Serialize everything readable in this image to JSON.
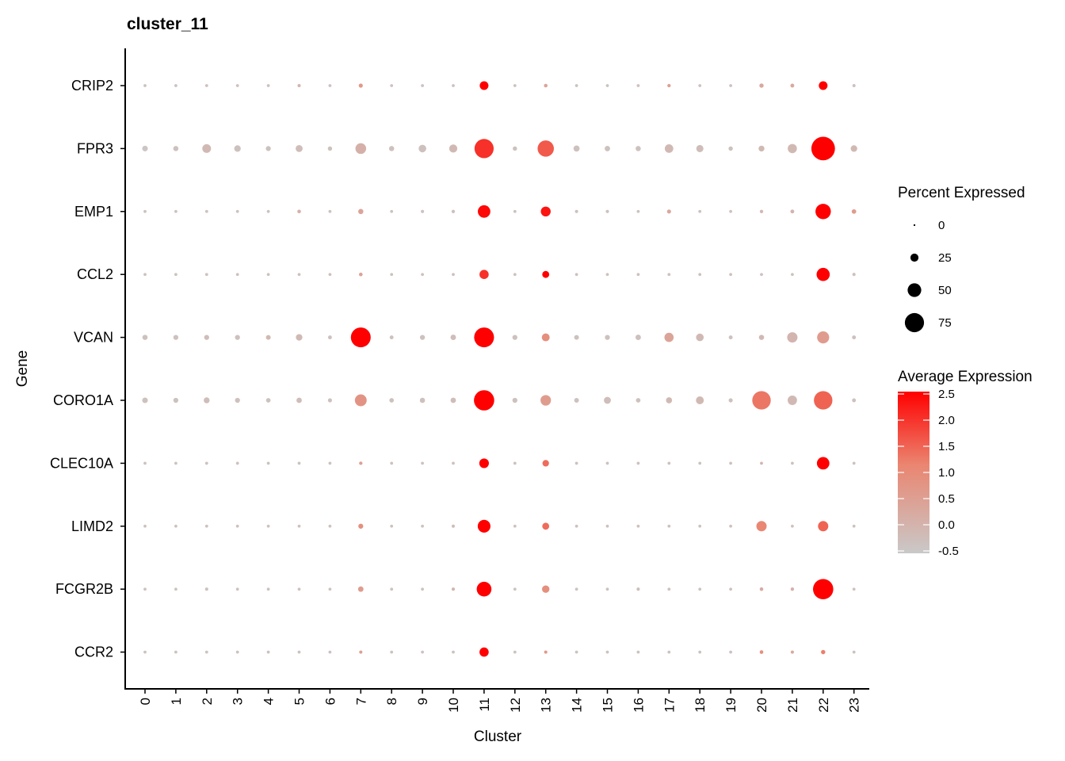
{
  "chart_data": {
    "type": "dot",
    "title": "cluster_11",
    "xlabel": "Cluster",
    "ylabel": "Gene",
    "categories": [
      "0",
      "1",
      "2",
      "3",
      "4",
      "5",
      "6",
      "7",
      "8",
      "9",
      "10",
      "11",
      "12",
      "13",
      "14",
      "15",
      "16",
      "17",
      "18",
      "19",
      "20",
      "21",
      "22",
      "23"
    ],
    "genes": [
      "CRIP2",
      "FPR3",
      "EMP1",
      "CCL2",
      "VCAN",
      "CORO1A",
      "CLEC10A",
      "LIMD2",
      "FCGR2B",
      "CCR2"
    ],
    "percent_expressed": [
      [
        2,
        2,
        2,
        2,
        2,
        3,
        2,
        7,
        2,
        2,
        2,
        28,
        2,
        5,
        2,
        2,
        2,
        4,
        2,
        2,
        8,
        6,
        28,
        3
      ],
      [
        14,
        12,
        28,
        18,
        11,
        20,
        8,
        37,
        12,
        23,
        25,
        75,
        8,
        62,
        16,
        13,
        12,
        27,
        21,
        8,
        15,
        30,
        95,
        18
      ],
      [
        2,
        2,
        2,
        2,
        2,
        5,
        2,
        12,
        2,
        3,
        4,
        45,
        2,
        33,
        3,
        3,
        2,
        7,
        2,
        2,
        4,
        6,
        58,
        9
      ],
      [
        2,
        2,
        2,
        2,
        2,
        2,
        2,
        5,
        2,
        2,
        2,
        30,
        2,
        20,
        2,
        2,
        2,
        2,
        2,
        2,
        2,
        2,
        48,
        3
      ],
      [
        12,
        11,
        11,
        11,
        10,
        18,
        6,
        78,
        6,
        11,
        13,
        78,
        11,
        24,
        10,
        11,
        13,
        30,
        23,
        6,
        12,
        35,
        43,
        6
      ],
      [
        14,
        11,
        15,
        11,
        9,
        13,
        7,
        42,
        9,
        12,
        13,
        80,
        11,
        36,
        10,
        20,
        9,
        16,
        24,
        7,
        72,
        31,
        72,
        6
      ],
      [
        2,
        2,
        2,
        2,
        2,
        2,
        2,
        4,
        2,
        2,
        2,
        32,
        2,
        18,
        2,
        2,
        2,
        2,
        2,
        2,
        2,
        2,
        45,
        2
      ],
      [
        2,
        2,
        2,
        2,
        2,
        2,
        2,
        11,
        2,
        2,
        3,
        46,
        2,
        20,
        2,
        2,
        2,
        2,
        2,
        2,
        35,
        2,
        35,
        2
      ],
      [
        2,
        2,
        3,
        2,
        2,
        2,
        2,
        13,
        2,
        2,
        3,
        55,
        2,
        22,
        2,
        2,
        3,
        2,
        2,
        2,
        5,
        4,
        80,
        2
      ],
      [
        2,
        2,
        2,
        2,
        2,
        2,
        2,
        3,
        2,
        2,
        2,
        30,
        2,
        3,
        2,
        2,
        2,
        2,
        2,
        2,
        5,
        3,
        8,
        2
      ]
    ],
    "average_expression": [
      [
        -0.3,
        -0.3,
        -0.3,
        -0.3,
        -0.3,
        0.0,
        -0.3,
        0.7,
        -0.3,
        -0.3,
        -0.3,
        2.5,
        -0.3,
        0.4,
        -0.3,
        -0.3,
        -0.3,
        0.5,
        -0.3,
        -0.3,
        0.3,
        0.3,
        2.5,
        -0.3
      ],
      [
        -0.4,
        -0.3,
        -0.1,
        -0.3,
        -0.3,
        -0.2,
        -0.3,
        0.1,
        -0.3,
        -0.3,
        -0.1,
        2.0,
        -0.3,
        1.6,
        -0.3,
        -0.3,
        -0.3,
        -0.1,
        -0.2,
        -0.3,
        -0.1,
        -0.1,
        2.5,
        -0.1
      ],
      [
        -0.3,
        -0.3,
        -0.3,
        -0.3,
        -0.3,
        0.1,
        -0.3,
        0.4,
        -0.3,
        -0.3,
        -0.3,
        2.4,
        -0.3,
        2.3,
        -0.3,
        -0.3,
        -0.3,
        0.3,
        -0.3,
        -0.3,
        -0.1,
        0.0,
        2.5,
        0.6
      ],
      [
        -0.3,
        -0.3,
        -0.3,
        -0.3,
        -0.3,
        -0.3,
        -0.3,
        0.4,
        -0.3,
        -0.3,
        -0.3,
        2.0,
        -0.3,
        2.5,
        -0.3,
        -0.3,
        -0.3,
        -0.3,
        -0.3,
        -0.3,
        -0.3,
        -0.3,
        2.5,
        -0.3
      ],
      [
        -0.3,
        -0.3,
        -0.2,
        -0.3,
        -0.1,
        -0.1,
        -0.3,
        2.5,
        -0.3,
        -0.3,
        -0.2,
        2.5,
        -0.3,
        0.9,
        -0.3,
        -0.3,
        -0.3,
        0.4,
        -0.1,
        -0.3,
        -0.1,
        0.0,
        0.6,
        -0.3
      ],
      [
        -0.3,
        -0.3,
        -0.2,
        -0.3,
        -0.3,
        -0.2,
        -0.3,
        0.8,
        -0.3,
        -0.3,
        -0.2,
        2.5,
        -0.3,
        0.6,
        -0.3,
        -0.2,
        -0.3,
        -0.1,
        -0.1,
        -0.3,
        1.3,
        -0.1,
        1.5,
        -0.3
      ],
      [
        -0.3,
        -0.3,
        -0.3,
        -0.3,
        -0.3,
        -0.3,
        -0.3,
        0.5,
        -0.3,
        -0.3,
        -0.3,
        2.5,
        -0.3,
        1.4,
        -0.3,
        -0.3,
        -0.3,
        -0.3,
        -0.3,
        -0.3,
        0.0,
        -0.3,
        2.5,
        -0.3
      ],
      [
        -0.3,
        -0.3,
        -0.3,
        -0.3,
        -0.3,
        -0.3,
        -0.3,
        0.9,
        -0.3,
        -0.3,
        -0.2,
        2.5,
        -0.3,
        1.4,
        -0.3,
        -0.3,
        -0.3,
        -0.3,
        -0.3,
        -0.3,
        1.1,
        -0.3,
        1.5,
        -0.3
      ],
      [
        -0.3,
        -0.3,
        -0.3,
        -0.3,
        -0.3,
        -0.3,
        -0.3,
        0.6,
        -0.3,
        -0.3,
        0.0,
        2.5,
        -0.3,
        0.9,
        -0.3,
        -0.3,
        -0.2,
        -0.3,
        -0.3,
        -0.3,
        0.2,
        0.1,
        2.5,
        -0.3
      ],
      [
        -0.3,
        -0.3,
        -0.3,
        -0.3,
        -0.3,
        -0.3,
        -0.3,
        0.5,
        -0.3,
        -0.3,
        -0.3,
        2.5,
        -0.3,
        0.7,
        -0.3,
        -0.3,
        -0.3,
        -0.3,
        -0.3,
        -0.3,
        0.9,
        0.3,
        1.2,
        -0.3
      ]
    ],
    "size_legend": {
      "title": "Percent Expressed",
      "values": [
        0,
        25,
        50,
        75
      ],
      "labels": [
        "0",
        "25",
        "50",
        "75"
      ]
    },
    "color_legend": {
      "title": "Average Expression",
      "range": [
        -0.5,
        2.5
      ],
      "ticks": [
        2.5,
        2.0,
        1.5,
        1.0,
        0.5,
        0.0,
        -0.5
      ],
      "tick_labels": [
        "2.5",
        "2.0",
        "1.5",
        "1.0",
        "0.5",
        "0.0",
        "-0.5"
      ],
      "low_color": "#C9C9C9",
      "high_color": "#FF0000"
    },
    "grid": false,
    "legend_position": "right"
  }
}
